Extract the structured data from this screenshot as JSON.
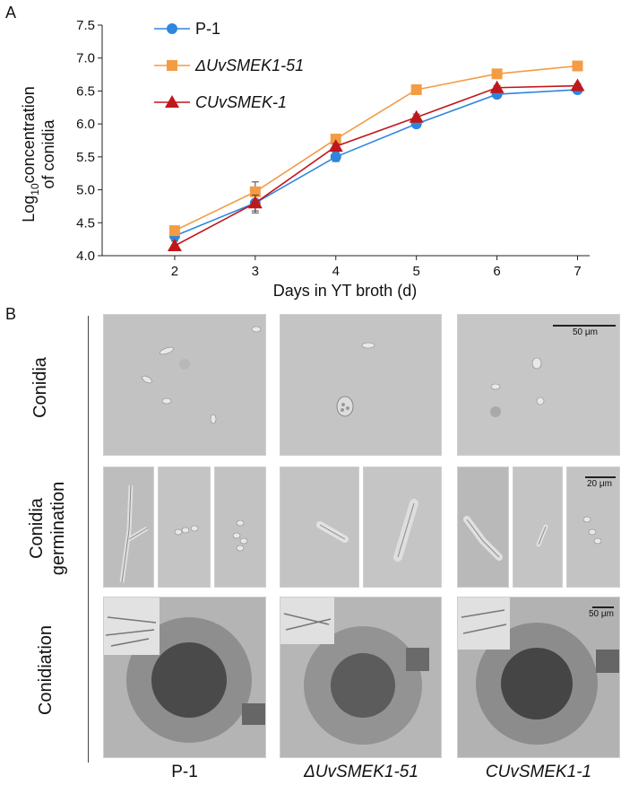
{
  "panel_a_label": "A",
  "panel_b_label": "B",
  "chart_data": {
    "type": "line",
    "x": [
      2,
      3,
      4,
      5,
      6,
      7
    ],
    "xlabel": "Days in YT broth (d)",
    "ylabel_line1": "Log",
    "ylabel_sub": "10",
    "ylabel_line1_rest": "concentration",
    "ylabel_line2": "of conidia",
    "ylim": [
      4.0,
      7.5
    ],
    "yticks": [
      "4.0",
      "4.5",
      "5.0",
      "5.5",
      "6.0",
      "6.5",
      "7.0",
      "7.5"
    ],
    "xticks": [
      "2",
      "3",
      "4",
      "5",
      "6",
      "7"
    ],
    "legend_position": "top-left",
    "series": [
      {
        "name": "P-1",
        "values": [
          4.3,
          4.8,
          5.5,
          6.0,
          6.45,
          6.52
        ],
        "err": [
          0.05,
          0.15,
          0.07,
          0.04,
          0.03,
          0.03
        ],
        "color": "#2e86de",
        "marker": "circle"
      },
      {
        "name": "ΔUvSMEK1-51",
        "values": [
          4.38,
          4.97,
          5.77,
          6.52,
          6.76,
          6.88
        ],
        "err": [
          0.04,
          0.15,
          0.04,
          0.03,
          0.03,
          0.03
        ],
        "color": "#f39c45",
        "marker": "square"
      },
      {
        "name": "CUvSMEK-1",
        "values": [
          4.15,
          4.8,
          5.66,
          6.1,
          6.55,
          6.58
        ],
        "err": [
          0.07,
          0.12,
          0.04,
          0.05,
          0.03,
          0.03
        ],
        "color": "#c0171b",
        "marker": "triangle"
      }
    ]
  },
  "panel_b": {
    "row_labels": {
      "conidia": "Conidia",
      "germination_line1": "Conidia",
      "germination_line2": "germination",
      "conidiation": "Conidiation"
    },
    "col_labels": [
      "P-1",
      "ΔUvSMEK1-51",
      "CUvSMEK1-1"
    ],
    "scale_bars": {
      "conidia": "50 μm",
      "germination": "20 μm",
      "conidiation": "50 μm"
    }
  }
}
